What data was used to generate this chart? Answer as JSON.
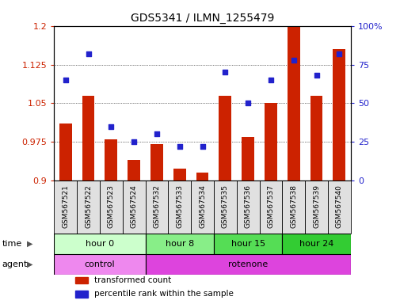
{
  "title": "GDS5341 / ILMN_1255479",
  "samples": [
    "GSM567521",
    "GSM567522",
    "GSM567523",
    "GSM567524",
    "GSM567532",
    "GSM567533",
    "GSM567534",
    "GSM567535",
    "GSM567536",
    "GSM567537",
    "GSM567538",
    "GSM567539",
    "GSM567540"
  ],
  "bar_values": [
    1.01,
    1.065,
    0.98,
    0.94,
    0.97,
    0.923,
    0.915,
    1.065,
    0.985,
    1.05,
    1.255,
    1.065,
    1.155
  ],
  "scatter_values": [
    65,
    82,
    35,
    25,
    30,
    22,
    22,
    70,
    50,
    65,
    78,
    68,
    82
  ],
  "ylim_left": [
    0.9,
    1.2
  ],
  "ylim_right": [
    0,
    100
  ],
  "yticks_left": [
    0.9,
    0.975,
    1.05,
    1.125,
    1.2
  ],
  "yticks_right": [
    0,
    25,
    50,
    75,
    100
  ],
  "ytick_labels_left": [
    "0.9",
    "0.975",
    "1.05",
    "1.125",
    "1.2"
  ],
  "ytick_labels_right": [
    "0",
    "25",
    "50",
    "75",
    "100%"
  ],
  "bar_color": "#cc2200",
  "scatter_color": "#2222cc",
  "bar_baseline": 0.9,
  "time_groups": [
    {
      "label": "hour 0",
      "start": 0,
      "end": 4,
      "color": "#ccffcc"
    },
    {
      "label": "hour 8",
      "start": 4,
      "end": 7,
      "color": "#88ee88"
    },
    {
      "label": "hour 15",
      "start": 7,
      "end": 10,
      "color": "#55dd55"
    },
    {
      "label": "hour 24",
      "start": 10,
      "end": 13,
      "color": "#33cc33"
    }
  ],
  "agent_groups": [
    {
      "label": "control",
      "start": 0,
      "end": 4,
      "color": "#ee88ee"
    },
    {
      "label": "rotenone",
      "start": 4,
      "end": 13,
      "color": "#dd44dd"
    }
  ],
  "legend_items": [
    {
      "label": "transformed count",
      "color": "#cc2200"
    },
    {
      "label": "percentile rank within the sample",
      "color": "#2222cc"
    }
  ],
  "time_label": "time",
  "agent_label": "agent"
}
